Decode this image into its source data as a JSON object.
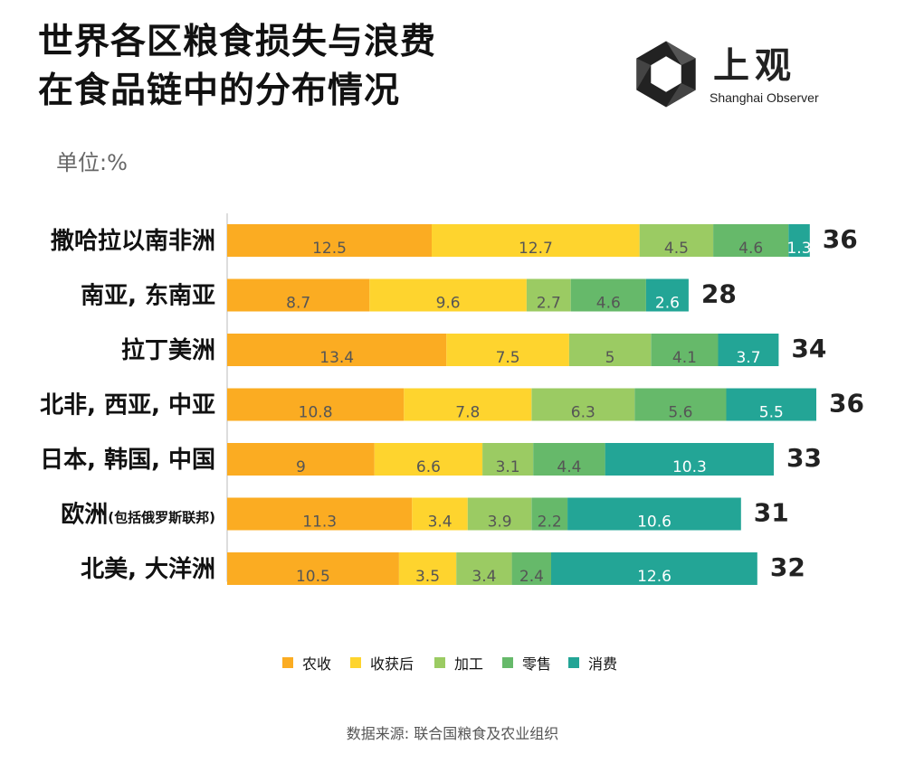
{
  "title": {
    "line1": "世界各区粮食损失与浪费",
    "line2": "在食品链中的分布情况"
  },
  "unit": "单位:%",
  "logo": {
    "cn": "上观",
    "en": "Shanghai Observer"
  },
  "source": "数据来源: 联合国粮食及农业组织",
  "colors": {
    "农收": "#FBAC22",
    "收获后": "#FED42E",
    "加工": "#9BCB63",
    "零售": "#66B96A",
    "消费": "#23A596"
  },
  "chart_data": {
    "type": "bar",
    "orientation": "horizontal",
    "stacked": true,
    "categories": [
      "撒哈拉以南非洲",
      "南亚, 东南亚",
      "拉丁美洲",
      "北非, 西亚, 中亚",
      "日本, 韩国, 中国",
      "欧洲",
      "北美, 大洋洲"
    ],
    "category_notes": [
      "",
      "",
      "",
      "",
      "",
      "(包括俄罗斯联邦)",
      ""
    ],
    "series": [
      {
        "name": "农收",
        "values": [
          12.5,
          8.7,
          13.4,
          10.8,
          9,
          11.3,
          10.5
        ]
      },
      {
        "name": "收获后",
        "values": [
          12.7,
          9.6,
          7.5,
          7.8,
          6.6,
          3.4,
          3.5
        ]
      },
      {
        "name": "加工",
        "values": [
          4.5,
          2.7,
          5,
          6.3,
          3.1,
          3.9,
          3.4
        ]
      },
      {
        "name": "零售",
        "values": [
          4.6,
          4.6,
          4.1,
          5.6,
          4.4,
          2.2,
          2.4
        ]
      },
      {
        "name": "消费",
        "values": [
          1.3,
          2.6,
          3.7,
          5.5,
          10.3,
          10.6,
          12.6
        ]
      }
    ],
    "segment_labels": [
      [
        "12.5",
        "12.7",
        "4.5",
        "4.6",
        "1.3"
      ],
      [
        "8.7",
        "9.6",
        "2.7",
        "4.6",
        "2.6"
      ],
      [
        "13.4",
        "7.5",
        "5",
        "4.1",
        "3.7"
      ],
      [
        "10.8",
        "7.8",
        "6.3",
        "5.6",
        "5.5"
      ],
      [
        "9",
        "6.6",
        "3.1",
        "4.4",
        "10.3"
      ],
      [
        "11.3",
        "3.4",
        "3.9",
        "2.2",
        "10.6"
      ],
      [
        "10.5",
        "3.5",
        "3.4",
        "2.4",
        "12.6"
      ]
    ],
    "totals": [
      36,
      28,
      34,
      36,
      33,
      31,
      32
    ],
    "total_labels": [
      "36",
      "28",
      "34",
      "36",
      "33",
      "31",
      "32"
    ],
    "legend": [
      "农收",
      "收获后",
      "加工",
      "零售",
      "消费"
    ],
    "legend_position": "bottom",
    "grid": false,
    "xlim": [
      0,
      36
    ]
  }
}
